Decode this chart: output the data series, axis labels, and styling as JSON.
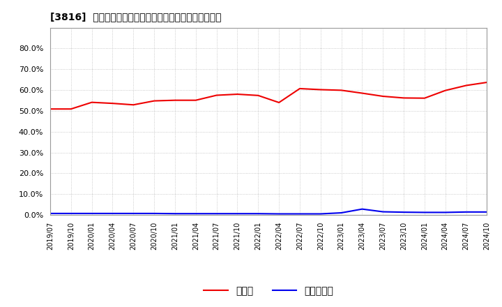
{
  "title": "[3816]  現預金、有利子負債の総資産に対する比率の推移",
  "ylim": [
    0.0,
    0.9
  ],
  "yticks": [
    0.0,
    0.1,
    0.2,
    0.3,
    0.4,
    0.5,
    0.6,
    0.7,
    0.8
  ],
  "background_color": "#ffffff",
  "plot_bg_color": "#ffffff",
  "grid_color": "#bbbbbb",
  "cash_color": "#ee0000",
  "debt_color": "#0000ee",
  "legend_cash": "現預金",
  "legend_debt": "有利子負債",
  "x_labels": [
    "2019/07",
    "2019/10",
    "2020/01",
    "2020/04",
    "2020/07",
    "2020/10",
    "2021/01",
    "2021/04",
    "2021/07",
    "2021/10",
    "2022/01",
    "2022/04",
    "2022/07",
    "2022/10",
    "2023/01",
    "2023/04",
    "2023/07",
    "2023/10",
    "2024/01",
    "2024/04",
    "2024/07",
    "2024/10"
  ],
  "cash_values": [
    0.509,
    0.509,
    0.541,
    0.536,
    0.529,
    0.548,
    0.551,
    0.551,
    0.575,
    0.58,
    0.574,
    0.54,
    0.607,
    0.602,
    0.599,
    0.585,
    0.57,
    0.562,
    0.561,
    0.598,
    0.622,
    0.637
  ],
  "debt_values": [
    0.007,
    0.007,
    0.007,
    0.007,
    0.007,
    0.007,
    0.006,
    0.006,
    0.006,
    0.006,
    0.006,
    0.005,
    0.005,
    0.005,
    0.01,
    0.028,
    0.015,
    0.013,
    0.012,
    0.012,
    0.014,
    0.014
  ]
}
